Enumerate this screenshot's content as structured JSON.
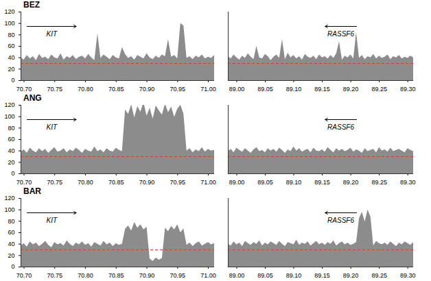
{
  "chart_data": {
    "type": "area",
    "color": "#8c8c8c",
    "ylim": [
      0,
      120
    ],
    "yticks": [
      0,
      20,
      40,
      60,
      80,
      100,
      120
    ],
    "threshold": {
      "value": 30,
      "color": "#e03c31",
      "line_style": "dashed"
    },
    "regions": [
      {
        "x": [
          70.695,
          70.7,
          70.705,
          70.71,
          70.715,
          70.72,
          70.725,
          70.73,
          70.735,
          70.74,
          70.745,
          70.75,
          70.755,
          70.76,
          70.765,
          70.77,
          70.775,
          70.78,
          70.785,
          70.79,
          70.795,
          70.8,
          70.805,
          70.81,
          70.815,
          70.82,
          70.825,
          70.83,
          70.835,
          70.84,
          70.845,
          70.85,
          70.855,
          70.86,
          70.865,
          70.87,
          70.875,
          70.88,
          70.885,
          70.89,
          70.895,
          70.9,
          70.905,
          70.91,
          70.915,
          70.92,
          70.925,
          70.93,
          70.935,
          70.94,
          70.945,
          70.95,
          70.955,
          70.96,
          70.965,
          70.97,
          70.975,
          70.98,
          70.985,
          70.99,
          70.995,
          71,
          71.005,
          71.01
        ],
        "xlim": [
          70.695,
          71.01
        ],
        "xticks": [
          {
            "value": 70.7,
            "label": "70.70"
          },
          {
            "value": 70.75,
            "label": "70.75"
          },
          {
            "value": 70.8,
            "label": "70.80"
          },
          {
            "value": 70.85,
            "label": "70.85"
          },
          {
            "value": 70.9,
            "label": "70.90"
          },
          {
            "value": 70.95,
            "label": "70.95"
          },
          {
            "value": 71,
            "label": "71.00"
          }
        ],
        "gene": {
          "name": "KIT",
          "start": 70.705,
          "end": 70.785
        },
        "tick_labels": true
      },
      {
        "x": [
          88.985,
          88.99,
          88.995,
          89,
          89.005,
          89.01,
          89.015,
          89.02,
          89.025,
          89.03,
          89.035,
          89.04,
          89.045,
          89.05,
          89.055,
          89.06,
          89.065,
          89.07,
          89.075,
          89.08,
          89.085,
          89.09,
          89.095,
          89.1,
          89.105,
          89.11,
          89.115,
          89.12,
          89.125,
          89.13,
          89.135,
          89.14,
          89.145,
          89.15,
          89.155,
          89.16,
          89.165,
          89.17,
          89.175,
          89.18,
          89.185,
          89.19,
          89.195,
          89.2,
          89.205,
          89.21,
          89.215,
          89.22,
          89.225,
          89.23,
          89.235,
          89.24,
          89.245,
          89.25,
          89.255,
          89.26,
          89.265,
          89.27,
          89.275,
          89.28,
          89.285,
          89.29,
          89.295,
          89.3,
          89.305,
          89.31
        ],
        "xlim": [
          88.985,
          89.31
        ],
        "xticks": [
          {
            "value": 89,
            "label": "89.00"
          },
          {
            "value": 89.05,
            "label": "89.05"
          },
          {
            "value": 89.1,
            "label": "89.10"
          },
          {
            "value": 89.15,
            "label": "89.15"
          },
          {
            "value": 89.2,
            "label": "89.20"
          },
          {
            "value": 89.25,
            "label": "89.25"
          },
          {
            "value": 89.3,
            "label": "89.30"
          }
        ],
        "gene": {
          "name": "RASSF6",
          "start": 89.21,
          "end": 89.155
        },
        "tick_labels": "x"
      }
    ],
    "rows": [
      {
        "title": "BEZ",
        "values": [
          [
            40,
            36,
            44,
            38,
            42,
            35,
            46,
            39,
            41,
            37,
            45,
            40,
            38,
            47,
            36,
            42,
            39,
            44,
            37,
            41,
            43,
            38,
            46,
            40,
            35,
            82,
            39,
            45,
            41,
            37,
            44,
            40,
            38,
            58,
            46,
            39,
            42,
            36,
            44,
            41,
            38,
            47,
            40,
            37,
            43,
            39,
            45,
            42,
            72,
            41,
            44,
            38,
            100,
            96,
            39,
            42,
            37,
            43,
            40,
            45,
            38,
            41,
            39,
            44
          ],
          [
            42,
            38,
            45,
            40,
            36,
            43,
            39,
            47,
            41,
            37,
            60,
            40,
            38,
            46,
            42,
            35,
            41,
            45,
            39,
            72,
            37,
            48,
            40,
            44,
            38,
            42,
            36,
            46,
            41,
            39,
            43,
            37,
            45,
            40,
            42,
            38,
            44,
            39,
            47,
            68,
            36,
            43,
            40,
            45,
            38,
            84,
            39,
            44,
            37,
            42,
            40,
            46,
            38,
            43,
            39,
            41,
            45,
            37,
            42,
            40,
            44,
            38,
            41,
            39,
            43,
            40
          ]
        ]
      },
      {
        "title": "ANG",
        "values": [
          [
            38,
            42,
            36,
            45,
            40,
            37,
            44,
            39,
            43,
            36,
            41,
            46,
            38,
            40,
            44,
            37,
            42,
            39,
            45,
            41,
            36,
            43,
            40,
            38,
            47,
            39,
            42,
            37,
            44,
            40,
            38,
            45,
            41,
            39,
            112,
            104,
            121,
            98,
            118,
            108,
            125,
            101,
            115,
            96,
            119,
            110,
            103,
            122,
            107,
            117,
            99,
            113,
            120,
            105,
            40,
            44,
            37,
            42,
            39,
            46,
            38,
            43,
            40,
            41
          ],
          [
            39,
            43,
            37,
            45,
            41,
            38,
            44,
            40,
            36,
            42,
            46,
            39,
            41,
            37,
            44,
            40,
            43,
            38,
            45,
            41,
            36,
            42,
            39,
            47,
            40,
            44,
            38,
            41,
            43,
            37,
            45,
            40,
            39,
            42,
            38,
            46,
            41,
            37,
            44,
            40,
            43,
            39,
            41,
            45,
            38,
            42,
            40,
            36,
            44,
            39,
            41,
            43,
            37,
            46,
            40,
            42,
            38,
            45,
            39,
            41,
            43,
            40,
            37,
            44,
            41,
            39
          ]
        ]
      },
      {
        "title": "BAR",
        "values": [
          [
            37,
            41,
            35,
            44,
            39,
            42,
            36,
            40,
            45,
            38,
            34,
            43,
            39,
            41,
            37,
            46,
            40,
            36,
            42,
            39,
            44,
            38,
            41,
            35,
            43,
            40,
            37,
            45,
            39,
            42,
            36,
            41,
            38,
            40,
            66,
            72,
            63,
            78,
            68,
            74,
            65,
            70,
            14,
            10,
            16,
            12,
            15,
            68,
            62,
            71,
            65,
            74,
            60,
            67,
            38,
            42,
            36,
            41,
            44,
            37,
            40,
            43,
            39,
            41
          ],
          [
            40,
            37,
            44,
            39,
            42,
            36,
            45,
            41,
            38,
            43,
            40,
            46,
            37,
            42,
            39,
            44,
            41,
            38,
            45,
            40,
            36,
            43,
            41,
            39,
            47,
            38,
            42,
            40,
            44,
            37,
            41,
            45,
            39,
            42,
            38,
            43,
            40,
            46,
            37,
            41,
            44,
            39,
            42,
            38,
            40,
            43,
            85,
            96,
            79,
            100,
            88,
            37,
            45,
            41,
            39,
            42,
            38,
            44,
            40,
            36,
            42,
            39,
            44,
            41,
            38,
            43
          ]
        ]
      }
    ]
  }
}
